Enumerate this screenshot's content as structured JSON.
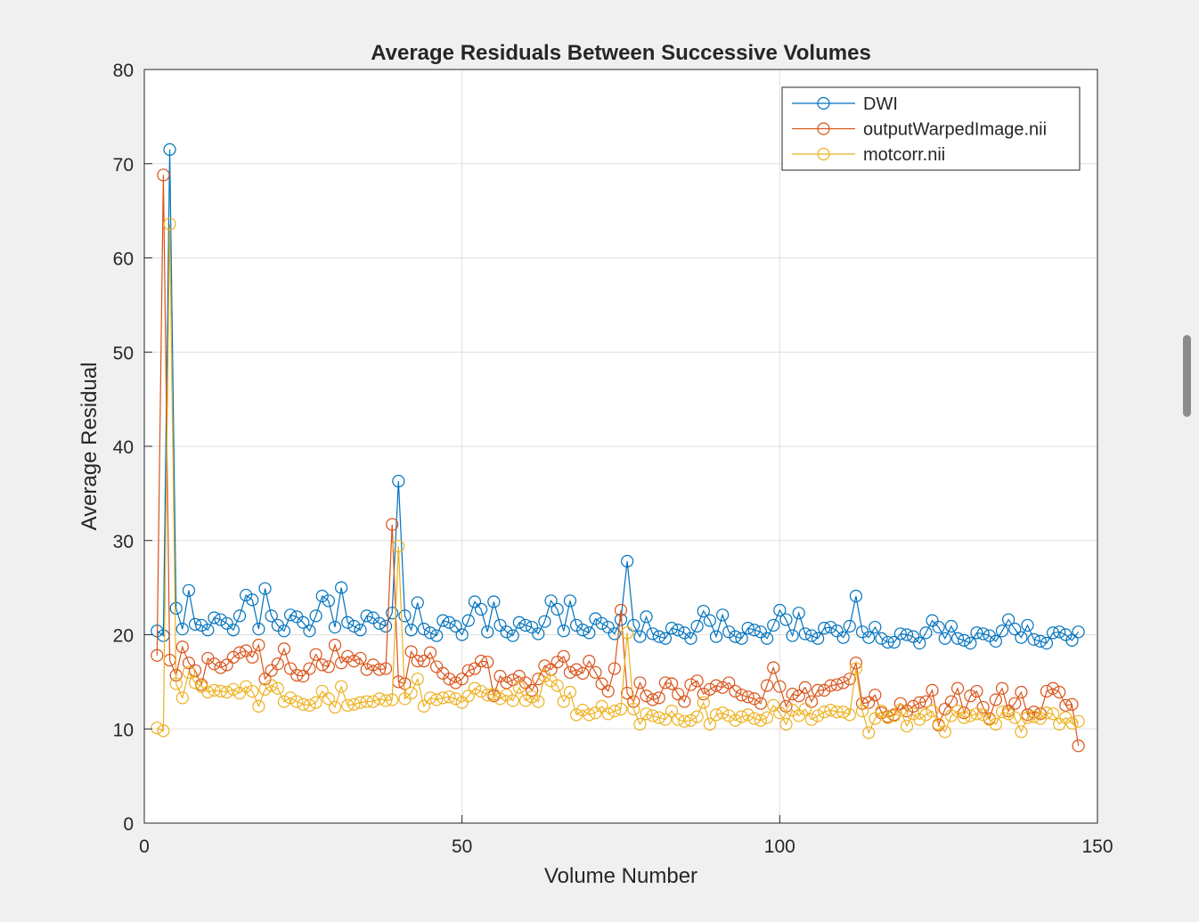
{
  "figure": {
    "background": "#f0f0f0",
    "axes_background": "#ffffff"
  },
  "chart_data": {
    "type": "line",
    "title": "Average Residuals Between Successive Volumes",
    "xlabel": "Volume Number",
    "ylabel": "Average Residual",
    "xlim": [
      0,
      150
    ],
    "ylim": [
      0,
      80
    ],
    "xticks": [
      0,
      50,
      100,
      150
    ],
    "yticks": [
      0,
      10,
      20,
      30,
      40,
      50,
      60,
      70,
      80
    ],
    "grid": true,
    "marker": "circle",
    "legend_position": "top-right",
    "x": [
      2,
      3,
      4,
      5,
      6,
      7,
      8,
      9,
      10,
      11,
      12,
      13,
      14,
      15,
      16,
      17,
      18,
      19,
      20,
      21,
      22,
      23,
      24,
      25,
      26,
      27,
      28,
      29,
      30,
      31,
      32,
      33,
      34,
      35,
      36,
      37,
      38,
      39,
      40,
      41,
      42,
      43,
      44,
      45,
      46,
      47,
      48,
      49,
      50,
      51,
      52,
      53,
      54,
      55,
      56,
      57,
      58,
      59,
      60,
      61,
      62,
      63,
      64,
      65,
      66,
      67,
      68,
      69,
      70,
      71,
      72,
      73,
      74,
      75,
      76,
      77,
      78,
      79,
      80,
      81,
      82,
      83,
      84,
      85,
      86,
      87,
      88,
      89,
      90,
      91,
      92,
      93,
      94,
      95,
      96,
      97,
      98,
      99,
      100,
      101,
      102,
      103,
      104,
      105,
      106,
      107,
      108,
      109,
      110,
      111,
      112,
      113,
      114,
      115,
      116,
      117,
      118,
      119,
      120,
      121,
      122,
      123,
      124,
      125,
      126,
      127,
      128,
      129,
      130,
      131,
      132,
      133,
      134,
      135,
      136,
      137,
      138,
      139,
      140,
      141,
      142,
      143,
      144,
      145,
      146,
      147
    ],
    "series": [
      {
        "name": "DWI",
        "color": "#0072bd",
        "values": [
          20.4,
          19.9,
          71.5,
          22.8,
          20.6,
          24.7,
          21.1,
          21.0,
          20.5,
          21.8,
          21.6,
          21.2,
          20.5,
          22.0,
          24.2,
          23.7,
          20.6,
          24.9,
          22.0,
          21.0,
          20.4,
          22.1,
          21.9,
          21.3,
          20.4,
          22.0,
          24.1,
          23.6,
          20.8,
          25.0,
          21.3,
          20.9,
          20.5,
          22.0,
          21.8,
          21.2,
          20.9,
          22.3,
          36.3,
          22.0,
          20.5,
          23.4,
          20.6,
          20.2,
          19.9,
          21.5,
          21.3,
          20.9,
          20.0,
          21.5,
          23.5,
          22.7,
          20.3,
          23.5,
          21.0,
          20.3,
          19.9,
          21.3,
          21.0,
          20.8,
          20.1,
          21.4,
          23.6,
          22.7,
          20.4,
          23.6,
          21.0,
          20.5,
          20.2,
          21.7,
          21.2,
          20.8,
          20.1,
          21.6,
          27.8,
          21.0,
          19.8,
          21.9,
          20.1,
          19.8,
          19.6,
          20.7,
          20.5,
          20.2,
          19.6,
          20.9,
          22.5,
          21.5,
          19.8,
          22.1,
          20.3,
          19.8,
          19.6,
          20.7,
          20.5,
          20.3,
          19.6,
          21.0,
          22.6,
          21.6,
          19.9,
          22.3,
          20.1,
          19.9,
          19.6,
          20.7,
          20.8,
          20.4,
          19.7,
          20.9,
          24.1,
          20.3,
          19.7,
          20.8,
          19.6,
          19.2,
          19.2,
          20.1,
          20.0,
          19.8,
          19.1,
          20.2,
          21.5,
          20.8,
          19.6,
          20.9,
          19.6,
          19.4,
          19.1,
          20.2,
          20.1,
          19.9,
          19.3,
          20.4,
          21.6,
          20.6,
          19.7,
          21.0,
          19.5,
          19.3,
          19.1,
          20.2,
          20.3,
          20.0,
          19.4,
          20.3
        ]
      },
      {
        "name": "outputWarpedImage.nii",
        "color": "#d95319",
        "values": [
          17.8,
          68.8,
          17.3,
          15.7,
          18.7,
          17.0,
          16.2,
          14.7,
          17.5,
          16.9,
          16.5,
          16.8,
          17.6,
          18.1,
          18.3,
          17.6,
          18.9,
          15.3,
          16.2,
          16.9,
          18.5,
          16.4,
          15.7,
          15.6,
          16.4,
          17.9,
          16.8,
          16.6,
          18.9,
          17.0,
          17.7,
          17.2,
          17.5,
          16.3,
          16.8,
          16.3,
          16.4,
          31.7,
          15.0,
          14.8,
          18.2,
          17.2,
          17.2,
          18.1,
          16.6,
          15.9,
          15.3,
          14.9,
          15.3,
          16.2,
          16.4,
          17.2,
          17.1,
          13.5,
          15.6,
          14.9,
          15.2,
          15.6,
          14.9,
          14.1,
          15.3,
          16.7,
          16.3,
          17.1,
          17.7,
          16.0,
          16.3,
          15.9,
          17.2,
          16.0,
          14.8,
          14.0,
          16.4,
          22.6,
          13.8,
          12.9,
          14.9,
          13.5,
          13.1,
          13.3,
          14.9,
          14.8,
          13.7,
          12.9,
          14.7,
          15.1,
          13.7,
          14.2,
          14.6,
          14.4,
          14.9,
          14.0,
          13.6,
          13.4,
          13.2,
          12.7,
          14.6,
          16.5,
          14.5,
          12.4,
          13.7,
          13.5,
          14.4,
          12.9,
          14.1,
          14.1,
          14.6,
          14.7,
          14.9,
          15.3,
          17.0,
          12.7,
          12.8,
          13.6,
          11.7,
          11.3,
          11.5,
          12.7,
          11.9,
          12.4,
          12.8,
          12.9,
          14.1,
          10.4,
          12.1,
          12.9,
          14.3,
          11.7,
          13.5,
          14.0,
          12.3,
          11.1,
          13.1,
          14.3,
          11.9,
          12.7,
          13.9,
          11.5,
          11.8,
          11.6,
          14.0,
          14.3,
          13.9,
          12.5,
          12.6,
          8.2
        ]
      },
      {
        "name": "motcorr.nii",
        "color": "#edb120",
        "values": [
          10.1,
          9.8,
          63.6,
          14.8,
          13.3,
          16.0,
          14.9,
          14.5,
          13.9,
          14.1,
          14.0,
          13.9,
          14.2,
          13.8,
          14.5,
          14.0,
          12.4,
          14.2,
          14.6,
          14.3,
          12.9,
          13.3,
          12.9,
          12.6,
          12.5,
          12.8,
          14.0,
          13.2,
          12.3,
          14.5,
          12.5,
          12.6,
          12.8,
          12.9,
          12.9,
          13.2,
          13.0,
          13.1,
          29.4,
          13.2,
          13.8,
          15.3,
          12.4,
          13.3,
          13.1,
          13.3,
          13.4,
          13.2,
          12.8,
          13.5,
          14.3,
          14.0,
          13.6,
          13.7,
          13.2,
          13.6,
          13.0,
          14.4,
          13.0,
          13.4,
          12.9,
          15.6,
          15.1,
          14.6,
          12.9,
          13.9,
          11.5,
          12.0,
          11.5,
          11.7,
          12.4,
          11.6,
          11.9,
          12.1,
          20.2,
          12.1,
          10.5,
          11.6,
          11.4,
          11.2,
          11.0,
          11.9,
          11.0,
          10.8,
          10.9,
          11.3,
          12.8,
          10.5,
          11.5,
          11.7,
          11.4,
          10.9,
          11.3,
          11.5,
          11.1,
          10.9,
          11.2,
          12.5,
          11.7,
          10.5,
          12.0,
          11.4,
          12.1,
          11.0,
          11.4,
          11.8,
          12.0,
          11.8,
          11.8,
          11.5,
          16.4,
          11.9,
          9.6,
          11.1,
          11.9,
          11.2,
          11.4,
          12.0,
          10.3,
          11.6,
          11.0,
          11.5,
          11.9,
          10.5,
          9.7,
          11.4,
          11.9,
          11.2,
          11.4,
          11.6,
          11.5,
          11.0,
          10.5,
          11.8,
          11.6,
          11.2,
          9.7,
          11.2,
          11.3,
          11.1,
          11.7,
          11.6,
          10.5,
          11.2,
          10.6,
          10.8
        ]
      }
    ]
  }
}
